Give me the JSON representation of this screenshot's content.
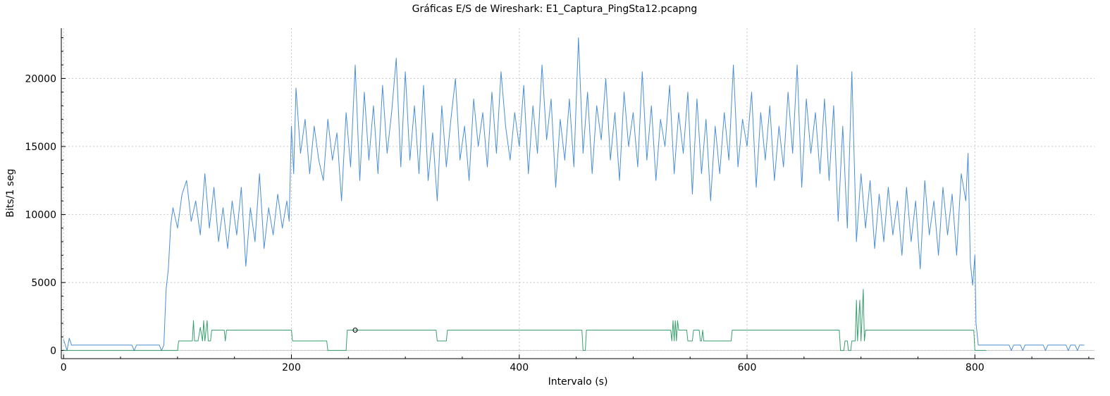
{
  "chart_data": {
    "type": "line",
    "title": "Gráficas E/S de Wireshark: E1_Captura_PingSta12.pcapng",
    "xlabel": "Intervalo (s)",
    "ylabel": "Bits/1 seg",
    "xlim": [
      -2,
      905
    ],
    "ylim": [
      -600,
      23700
    ],
    "x_ticks": [
      0,
      200,
      400,
      600,
      800
    ],
    "y_ticks": [
      0,
      5000,
      10000,
      15000,
      20000
    ],
    "grid": true,
    "legend": "none",
    "series": [
      {
        "color": "#4a8fd6",
        "points": [
          [
            0,
            800
          ],
          [
            3,
            0
          ],
          [
            5,
            900
          ],
          [
            7,
            400
          ],
          [
            30,
            400
          ],
          [
            60,
            400
          ],
          [
            62,
            0
          ],
          [
            64,
            400
          ],
          [
            80,
            400
          ],
          [
            84,
            400
          ],
          [
            86,
            0
          ],
          [
            88,
            400
          ],
          [
            90,
            4500
          ],
          [
            92,
            6000
          ],
          [
            94,
            9200
          ],
          [
            96,
            10500
          ],
          [
            100,
            9000
          ],
          [
            104,
            11500
          ],
          [
            108,
            12500
          ],
          [
            112,
            9500
          ],
          [
            116,
            11000
          ],
          [
            120,
            8500
          ],
          [
            124,
            13000
          ],
          [
            128,
            9000
          ],
          [
            132,
            12000
          ],
          [
            136,
            8000
          ],
          [
            140,
            10500
          ],
          [
            144,
            7500
          ],
          [
            148,
            11000
          ],
          [
            152,
            8500
          ],
          [
            156,
            12000
          ],
          [
            160,
            6200
          ],
          [
            164,
            10500
          ],
          [
            168,
            8000
          ],
          [
            172,
            13000
          ],
          [
            176,
            7500
          ],
          [
            180,
            10500
          ],
          [
            184,
            8500
          ],
          [
            188,
            11500
          ],
          [
            192,
            9000
          ],
          [
            196,
            11000
          ],
          [
            198,
            9500
          ],
          [
            200,
            16500
          ],
          [
            202,
            13000
          ],
          [
            204,
            19300
          ],
          [
            208,
            14500
          ],
          [
            212,
            17000
          ],
          [
            216,
            13000
          ],
          [
            220,
            16500
          ],
          [
            224,
            14000
          ],
          [
            228,
            12500
          ],
          [
            232,
            17000
          ],
          [
            236,
            14000
          ],
          [
            240,
            16000
          ],
          [
            244,
            11000
          ],
          [
            248,
            17500
          ],
          [
            252,
            13500
          ],
          [
            256,
            21000
          ],
          [
            260,
            12500
          ],
          [
            264,
            19000
          ],
          [
            268,
            14000
          ],
          [
            272,
            18000
          ],
          [
            276,
            13000
          ],
          [
            280,
            19500
          ],
          [
            284,
            14500
          ],
          [
            288,
            17500
          ],
          [
            292,
            21500
          ],
          [
            296,
            13500
          ],
          [
            300,
            20500
          ],
          [
            304,
            14000
          ],
          [
            308,
            18000
          ],
          [
            312,
            13000
          ],
          [
            316,
            19500
          ],
          [
            320,
            12500
          ],
          [
            324,
            16000
          ],
          [
            328,
            11000
          ],
          [
            332,
            18000
          ],
          [
            336,
            13500
          ],
          [
            340,
            17000
          ],
          [
            344,
            20000
          ],
          [
            348,
            14000
          ],
          [
            352,
            16500
          ],
          [
            356,
            12500
          ],
          [
            360,
            18500
          ],
          [
            364,
            15000
          ],
          [
            368,
            17500
          ],
          [
            372,
            13500
          ],
          [
            376,
            19000
          ],
          [
            380,
            14500
          ],
          [
            384,
            20500
          ],
          [
            388,
            16500
          ],
          [
            392,
            14000
          ],
          [
            396,
            17500
          ],
          [
            400,
            15000
          ],
          [
            404,
            19500
          ],
          [
            408,
            13000
          ],
          [
            412,
            18000
          ],
          [
            416,
            14500
          ],
          [
            420,
            21000
          ],
          [
            424,
            15500
          ],
          [
            428,
            18500
          ],
          [
            432,
            12000
          ],
          [
            436,
            17000
          ],
          [
            440,
            14000
          ],
          [
            444,
            18500
          ],
          [
            448,
            13500
          ],
          [
            452,
            23000
          ],
          [
            456,
            14500
          ],
          [
            460,
            19000
          ],
          [
            464,
            13000
          ],
          [
            468,
            18000
          ],
          [
            472,
            15500
          ],
          [
            476,
            20000
          ],
          [
            480,
            14000
          ],
          [
            484,
            17500
          ],
          [
            488,
            12500
          ],
          [
            492,
            19000
          ],
          [
            496,
            15000
          ],
          [
            500,
            17500
          ],
          [
            504,
            13500
          ],
          [
            508,
            20500
          ],
          [
            512,
            14000
          ],
          [
            516,
            18000
          ],
          [
            520,
            12500
          ],
          [
            524,
            17000
          ],
          [
            528,
            15000
          ],
          [
            532,
            19500
          ],
          [
            536,
            13000
          ],
          [
            540,
            17500
          ],
          [
            544,
            14500
          ],
          [
            548,
            19000
          ],
          [
            552,
            11500
          ],
          [
            556,
            18500
          ],
          [
            560,
            13000
          ],
          [
            564,
            17000
          ],
          [
            568,
            11000
          ],
          [
            572,
            16500
          ],
          [
            576,
            13000
          ],
          [
            580,
            17500
          ],
          [
            584,
            14000
          ],
          [
            588,
            21000
          ],
          [
            592,
            13500
          ],
          [
            596,
            17000
          ],
          [
            600,
            15000
          ],
          [
            604,
            19000
          ],
          [
            608,
            12000
          ],
          [
            612,
            17500
          ],
          [
            616,
            14000
          ],
          [
            620,
            18000
          ],
          [
            624,
            12500
          ],
          [
            628,
            16500
          ],
          [
            632,
            13500
          ],
          [
            636,
            19000
          ],
          [
            640,
            14500
          ],
          [
            644,
            21000
          ],
          [
            648,
            12000
          ],
          [
            652,
            18500
          ],
          [
            656,
            14500
          ],
          [
            660,
            17500
          ],
          [
            664,
            13000
          ],
          [
            668,
            18500
          ],
          [
            672,
            12500
          ],
          [
            676,
            18000
          ],
          [
            680,
            9500
          ],
          [
            684,
            16500
          ],
          [
            688,
            9000
          ],
          [
            692,
            20500
          ],
          [
            696,
            8000
          ],
          [
            700,
            13000
          ],
          [
            704,
            9000
          ],
          [
            708,
            12500
          ],
          [
            712,
            7500
          ],
          [
            716,
            11500
          ],
          [
            720,
            8000
          ],
          [
            724,
            12000
          ],
          [
            728,
            8500
          ],
          [
            732,
            11000
          ],
          [
            736,
            7000
          ],
          [
            740,
            12000
          ],
          [
            744,
            8000
          ],
          [
            748,
            11000
          ],
          [
            752,
            6000
          ],
          [
            756,
            12500
          ],
          [
            760,
            8500
          ],
          [
            764,
            11000
          ],
          [
            768,
            7000
          ],
          [
            772,
            12000
          ],
          [
            776,
            8500
          ],
          [
            780,
            11500
          ],
          [
            784,
            7000
          ],
          [
            788,
            13000
          ],
          [
            792,
            11000
          ],
          [
            794,
            14500
          ],
          [
            796,
            6500
          ],
          [
            798,
            4800
          ],
          [
            800,
            7000
          ],
          [
            801,
            2000
          ],
          [
            803,
            400
          ],
          [
            820,
            400
          ],
          [
            830,
            400
          ],
          [
            832,
            0
          ],
          [
            834,
            400
          ],
          [
            840,
            400
          ],
          [
            842,
            0
          ],
          [
            844,
            400
          ],
          [
            860,
            400
          ],
          [
            862,
            0
          ],
          [
            864,
            400
          ],
          [
            880,
            400
          ],
          [
            882,
            0
          ],
          [
            884,
            400
          ],
          [
            888,
            400
          ],
          [
            890,
            0
          ],
          [
            892,
            400
          ],
          [
            896,
            400
          ]
        ]
      },
      {
        "color": "#3aa06e",
        "points": [
          [
            0,
            0
          ],
          [
            100,
            0
          ],
          [
            101,
            700
          ],
          [
            113,
            700
          ],
          [
            114,
            2200
          ],
          [
            115,
            700
          ],
          [
            118,
            700
          ],
          [
            120,
            1700
          ],
          [
            122,
            700
          ],
          [
            123,
            2200
          ],
          [
            124,
            700
          ],
          [
            126,
            2200
          ],
          [
            127,
            700
          ],
          [
            129,
            700
          ],
          [
            130,
            1500
          ],
          [
            141,
            1500
          ],
          [
            142,
            700
          ],
          [
            143,
            1500
          ],
          [
            200,
            1500
          ],
          [
            201,
            700
          ],
          [
            231,
            700
          ],
          [
            232,
            0
          ],
          [
            248,
            0
          ],
          [
            249,
            1500
          ],
          [
            327,
            1500
          ],
          [
            328,
            700
          ],
          [
            336,
            700
          ],
          [
            337,
            1500
          ],
          [
            455,
            1500
          ],
          [
            456,
            0
          ],
          [
            458,
            0
          ],
          [
            459,
            1500
          ],
          [
            533,
            1500
          ],
          [
            534,
            700
          ],
          [
            535,
            2200
          ],
          [
            536,
            700
          ],
          [
            537,
            2200
          ],
          [
            538,
            700
          ],
          [
            539,
            2200
          ],
          [
            540,
            1500
          ],
          [
            547,
            1500
          ],
          [
            548,
            700
          ],
          [
            552,
            700
          ],
          [
            553,
            1500
          ],
          [
            558,
            1500
          ],
          [
            559,
            700
          ],
          [
            560,
            700
          ],
          [
            561,
            1500
          ],
          [
            562,
            700
          ],
          [
            586,
            700
          ],
          [
            587,
            1500
          ],
          [
            681,
            1500
          ],
          [
            682,
            0
          ],
          [
            685,
            0
          ],
          [
            686,
            700
          ],
          [
            688,
            700
          ],
          [
            689,
            0
          ],
          [
            691,
            0
          ],
          [
            692,
            700
          ],
          [
            695,
            700
          ],
          [
            696,
            3700
          ],
          [
            697,
            700
          ],
          [
            699,
            3700
          ],
          [
            700,
            700
          ],
          [
            702,
            4500
          ],
          [
            703,
            700
          ],
          [
            704,
            1500
          ],
          [
            799,
            1500
          ],
          [
            800,
            0
          ],
          [
            810,
            0
          ]
        ]
      }
    ],
    "marker": {
      "x": 256,
      "y": 1500,
      "color": "#000000"
    }
  }
}
